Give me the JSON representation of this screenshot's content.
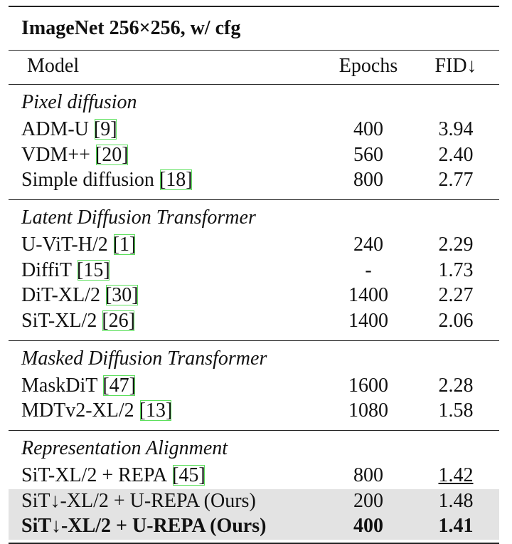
{
  "table": {
    "title": "ImageNet 256×256, w/ cfg",
    "header": [
      "Model",
      "Epochs",
      "FID↓"
    ],
    "groups": [
      {
        "label": "Pixel diffusion",
        "rows": [
          {
            "model": "ADM-U",
            "cite": "[9]",
            "epochs": "400",
            "fid": "3.94"
          },
          {
            "model": "VDM++",
            "cite": "[20]",
            "epochs": "560",
            "fid": "2.40"
          },
          {
            "model": "Simple diffusion",
            "cite": "[18]",
            "epochs": "800",
            "fid": "2.77"
          }
        ]
      },
      {
        "label": "Latent Diffusion Transformer",
        "rows": [
          {
            "model": "U-ViT-H/2",
            "cite": "[1]",
            "epochs": "240",
            "fid": "2.29"
          },
          {
            "model": "DiffiT",
            "cite": "[15]",
            "epochs": "-",
            "fid": "1.73"
          },
          {
            "model": "DiT-XL/2",
            "cite": "[30]",
            "epochs": "1400",
            "fid": "2.27"
          },
          {
            "model": "SiT-XL/2",
            "cite": "[26]",
            "epochs": "1400",
            "fid": "2.06"
          }
        ]
      },
      {
        "label": "Masked Diffusion Transformer",
        "rows": [
          {
            "model": "MaskDiT",
            "cite": "[47]",
            "epochs": "1600",
            "fid": "2.28"
          },
          {
            "model": "MDTv2-XL/2",
            "cite": "[13]",
            "epochs": "1080",
            "fid": "1.58"
          }
        ]
      },
      {
        "label": "Representation Alignment",
        "rows": [
          {
            "model": "SiT-XL/2 + REPA",
            "cite": "[45]",
            "epochs": "800",
            "fid": "1.42",
            "underline": true
          },
          {
            "model": "SiT↓-XL/2 + U-REPA (Ours)",
            "epochs": "200",
            "fid": "1.48",
            "highlight": true
          },
          {
            "model": "SiT↓-XL/2 + U-REPA (Ours)",
            "epochs": "400",
            "fid": "1.41",
            "highlight": true,
            "bold": true
          }
        ]
      }
    ]
  }
}
